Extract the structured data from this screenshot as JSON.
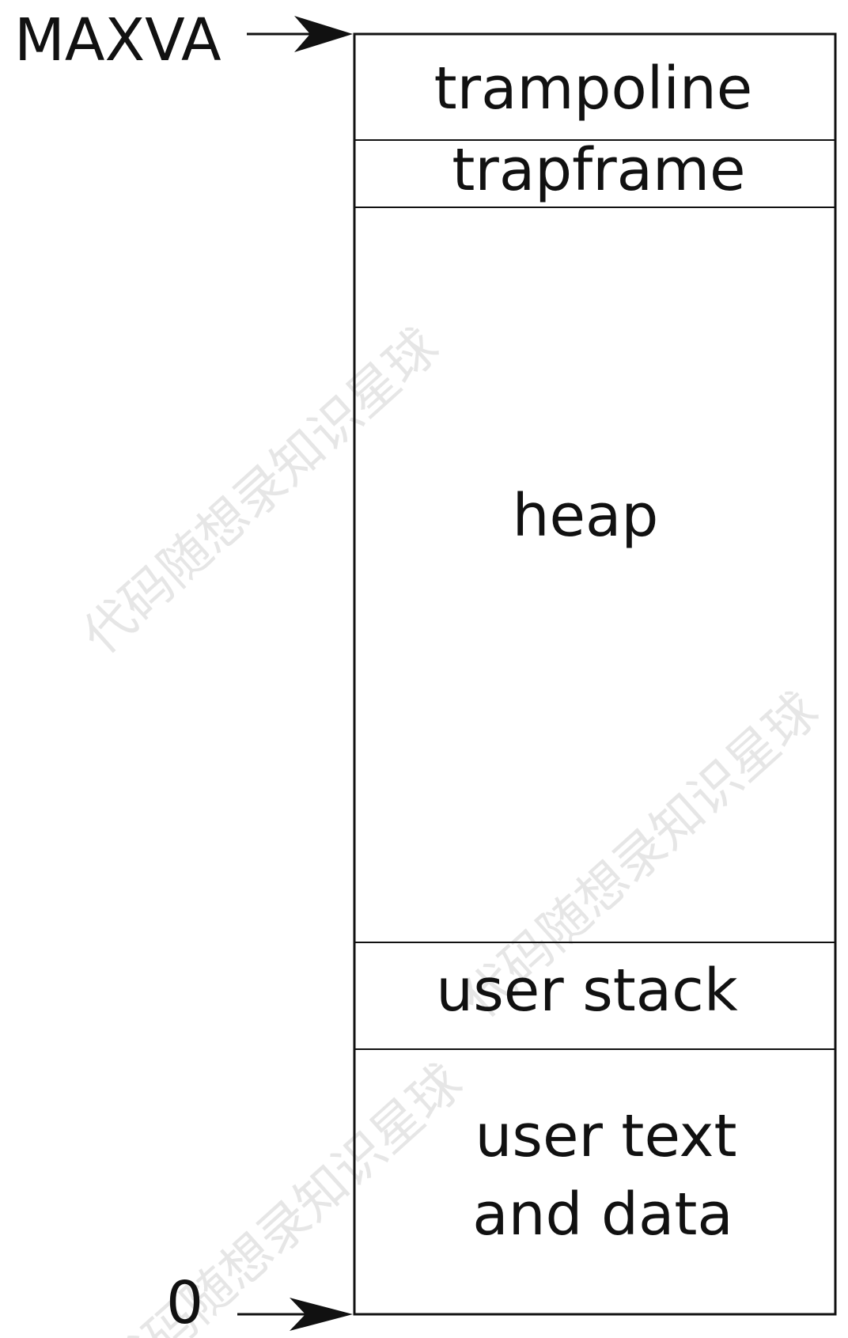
{
  "addresses": {
    "top": "MAXVA",
    "bottom": "0"
  },
  "segments": [
    {
      "name": "trampoline",
      "lines": [
        "trampoline"
      ]
    },
    {
      "name": "trapframe",
      "lines": [
        "trapframe"
      ]
    },
    {
      "name": "heap",
      "lines": [
        "heap"
      ]
    },
    {
      "name": "user-stack",
      "lines": [
        "user stack"
      ]
    },
    {
      "name": "user-text-and-data",
      "lines": [
        "user text",
        "and data"
      ]
    }
  ],
  "watermark": "代码随想录知识星球",
  "colors": {
    "stroke": "#111111",
    "background": "#ffffff",
    "watermark": "#d6d6d6"
  }
}
